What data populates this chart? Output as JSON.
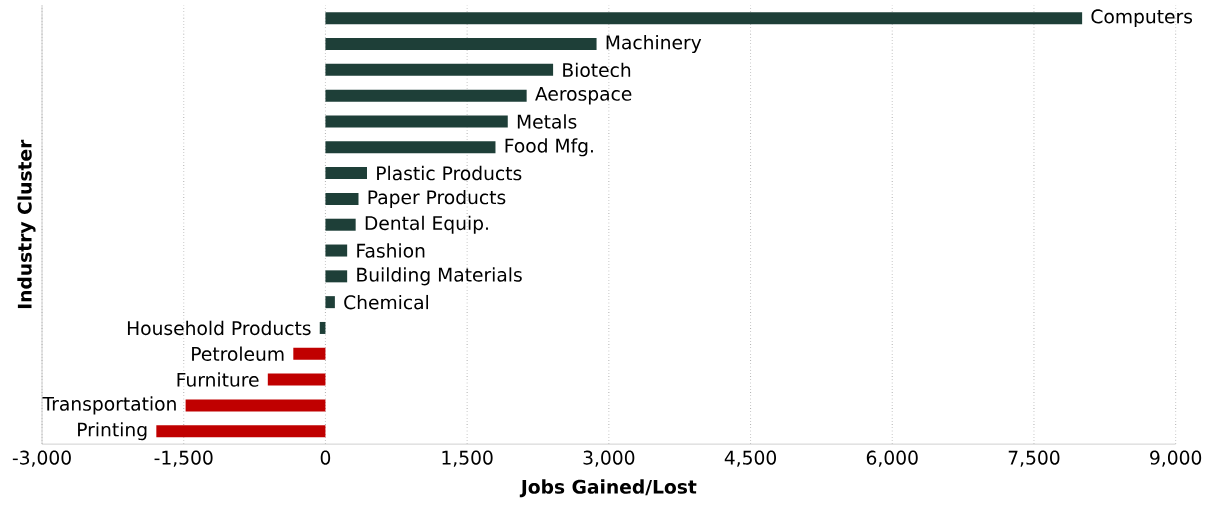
{
  "chart_data": {
    "type": "bar",
    "orientation": "horizontal",
    "xlabel": "Jobs Gained/Lost",
    "ylabel": "Industry Cluster",
    "categories": [
      "Computers",
      "Machinery",
      "Biotech",
      "Aerospace",
      "Metals",
      "Food Mfg.",
      "Plastic Products",
      "Paper Products",
      "Dental Equip.",
      "Fashion",
      "Building Materials",
      "Chemical",
      "Household Products",
      "Petroleum",
      "Furniture",
      "Transportation",
      "Printing"
    ],
    "values": [
      8010,
      2870,
      2410,
      2130,
      1930,
      1800,
      440,
      350,
      320,
      230,
      230,
      100,
      -60,
      -340,
      -610,
      -1480,
      -1790
    ],
    "colors": [
      "#1e3f38",
      "#1e3f38",
      "#1e3f38",
      "#1e3f38",
      "#1e3f38",
      "#1e3f38",
      "#1e3f38",
      "#1e3f38",
      "#1e3f38",
      "#1e3f38",
      "#1e3f38",
      "#1e3f38",
      "#1e3f38",
      "#c00000",
      "#c00000",
      "#c00000",
      "#c00000"
    ],
    "xlim": [
      -3000,
      9000
    ],
    "xticks": [
      {
        "value": -3000,
        "label": "-3,000"
      },
      {
        "value": -1500,
        "label": "-1,500"
      },
      0,
      {
        "value": 1500,
        "label": "1,500"
      },
      {
        "value": 3000,
        "label": "3,000"
      },
      {
        "value": 4500,
        "label": "4,500"
      },
      {
        "value": 6000,
        "label": "6,000"
      },
      {
        "value": 7500,
        "label": "7,500"
      },
      {
        "value": 9000,
        "label": "9,000"
      }
    ],
    "grid": "x"
  }
}
